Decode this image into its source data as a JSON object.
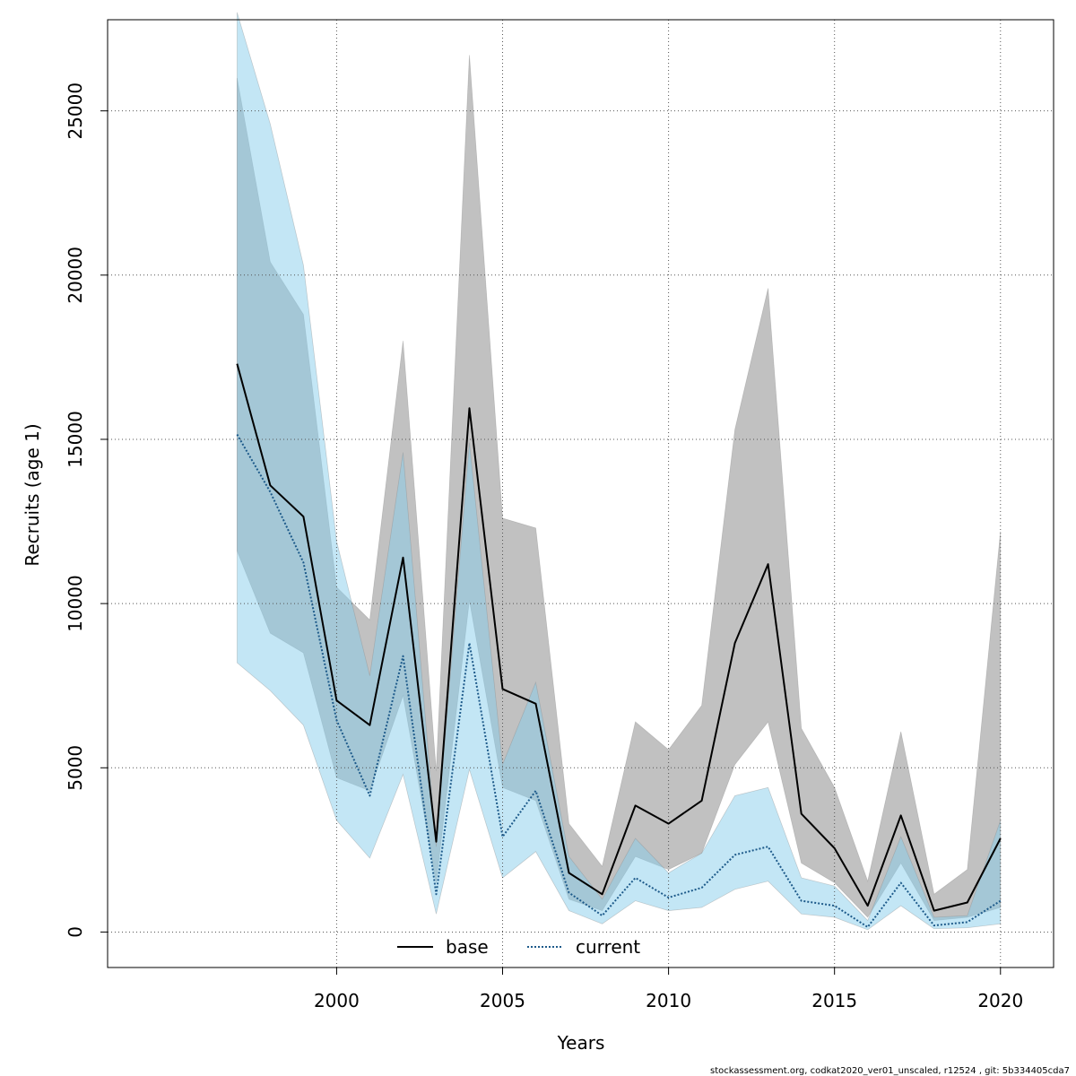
{
  "chart_data": {
    "type": "line",
    "xlabel": "Years",
    "ylabel": "Recruits (age 1)",
    "xlim": [
      1993.1,
      2021.6
    ],
    "ylim": [
      -1080,
      27775
    ],
    "xticks": [
      2000,
      2005,
      2010,
      2015,
      2020
    ],
    "yticks": [
      0,
      5000,
      10000,
      15000,
      20000,
      25000
    ],
    "grid": true,
    "legend_position": "bottom-center",
    "x": [
      1997,
      1998,
      1999,
      2000,
      2001,
      2002,
      2003,
      2004,
      2005,
      2006,
      2007,
      2008,
      2009,
      2010,
      2011,
      2012,
      2013,
      2014,
      2015,
      2016,
      2017,
      2018,
      2019,
      2020
    ],
    "series": [
      {
        "name": "base",
        "line_style": "solid",
        "line_color": "#000000",
        "band_color": "#bebebe",
        "values": [
          17300,
          13600,
          12650,
          7050,
          6300,
          11400,
          2750,
          15950,
          7400,
          6950,
          1800,
          1150,
          3850,
          3300,
          4000,
          8800,
          11200,
          3600,
          2550,
          800,
          3550,
          650,
          900,
          2850
        ],
        "lower": [
          11600,
          9100,
          8500,
          4700,
          4300,
          7200,
          1500,
          10100,
          4400,
          4000,
          1000,
          650,
          2300,
          1900,
          2400,
          5100,
          6400,
          2100,
          1500,
          450,
          2100,
          350,
          450,
          750
        ],
        "upper": [
          26000,
          20400,
          18800,
          10500,
          9500,
          18000,
          4900,
          26700,
          12600,
          12300,
          3300,
          2000,
          6400,
          5550,
          6900,
          15300,
          19600,
          6200,
          4400,
          1550,
          6100,
          1150,
          1900,
          12200
        ]
      },
      {
        "name": "current",
        "line_style": "dotted",
        "line_color": "#1d5a8a",
        "band_color": "#87ceeb",
        "values": [
          15150,
          13400,
          11250,
          6450,
          4150,
          8400,
          1150,
          8800,
          2900,
          4300,
          1200,
          500,
          1650,
          1050,
          1350,
          2350,
          2600,
          950,
          800,
          150,
          1500,
          200,
          300,
          950
        ],
        "lower": [
          8200,
          7350,
          6300,
          3400,
          2250,
          4800,
          550,
          4950,
          1650,
          2450,
          650,
          250,
          950,
          650,
          750,
          1300,
          1550,
          550,
          450,
          70,
          800,
          100,
          130,
          250
        ],
        "upper": [
          28000,
          24600,
          20300,
          11900,
          7800,
          14600,
          2600,
          14900,
          5100,
          7600,
          2300,
          1000,
          2850,
          1800,
          2400,
          4150,
          4400,
          1650,
          1400,
          350,
          2900,
          450,
          500,
          3400
        ]
      }
    ]
  },
  "footer_text": "stockassessment.org, codkat2020_ver01_unscaled, r12524 , git: 5b334405cda7"
}
